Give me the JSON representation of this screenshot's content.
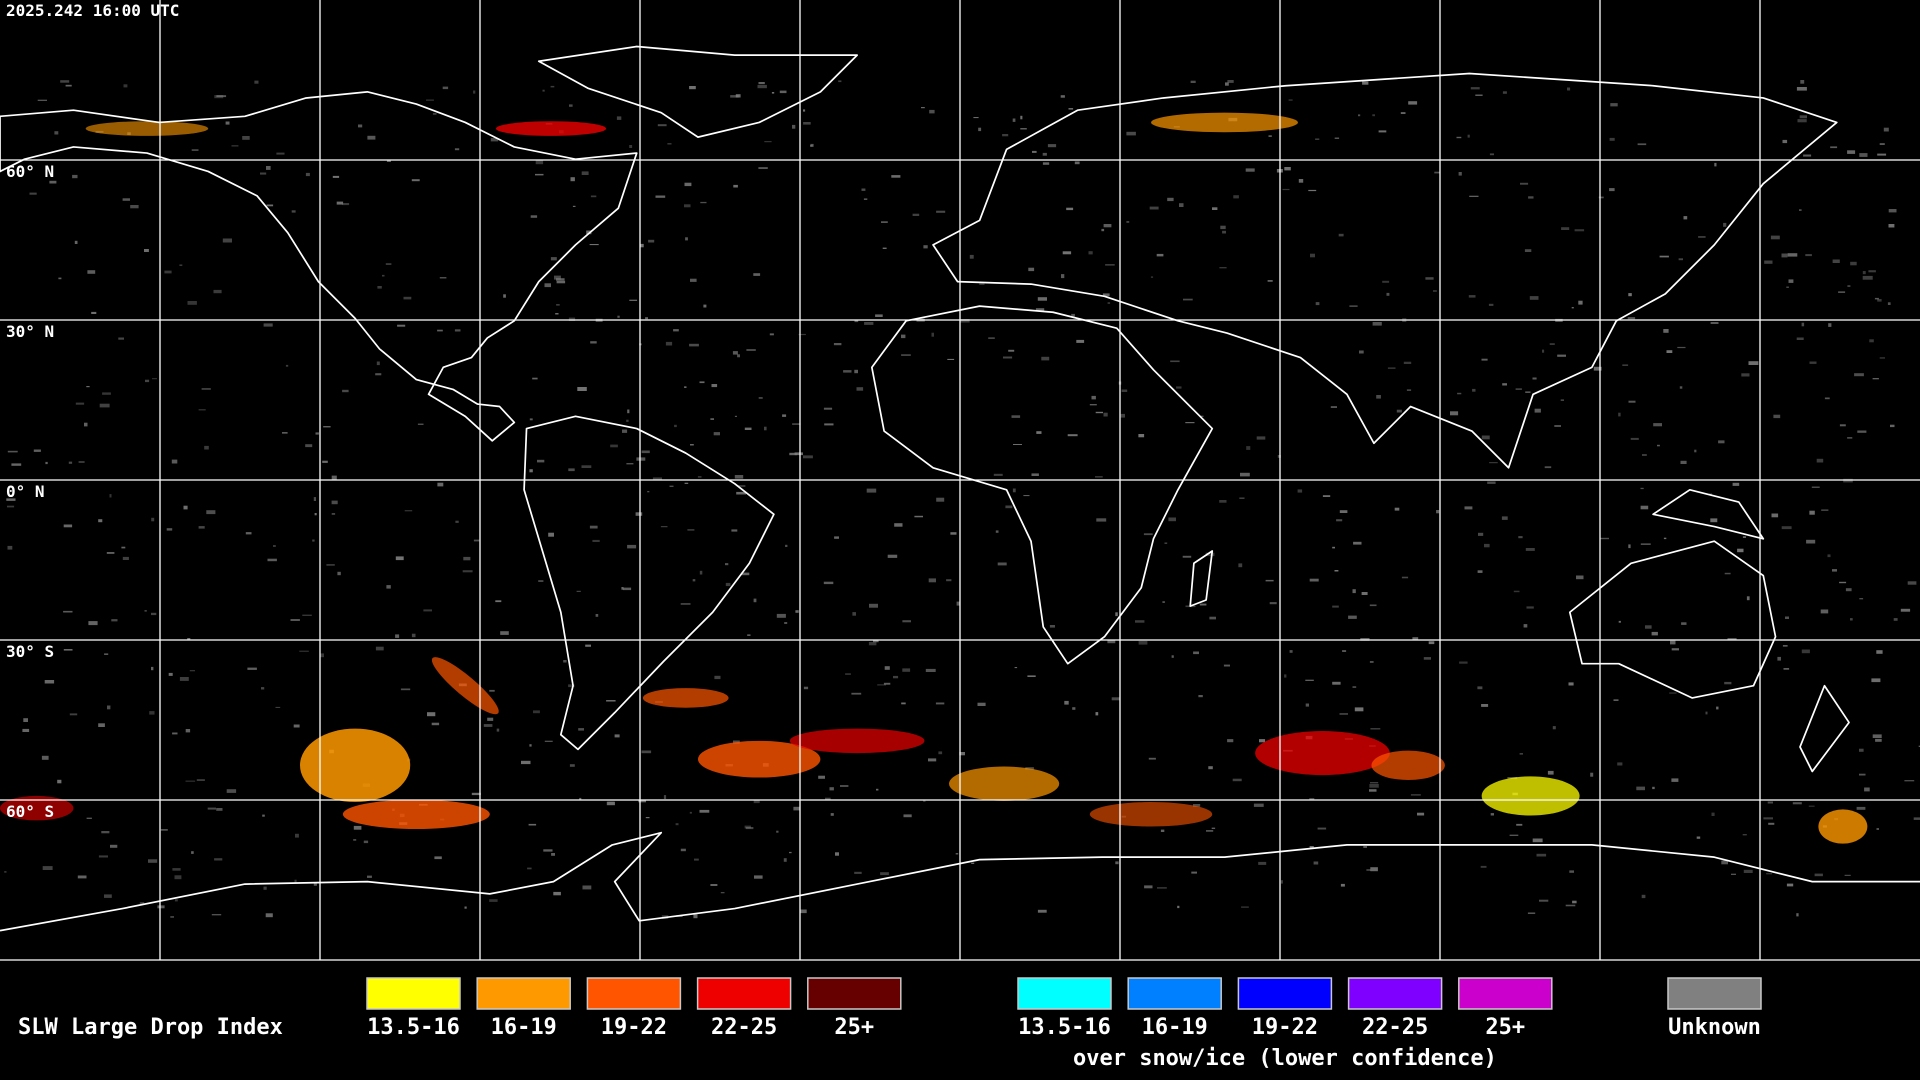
{
  "timestamp": "2025.242 16:00 UTC",
  "map": {
    "latitude_labels": [
      "60° N",
      "30° N",
      "0° N",
      "30° S",
      "60° S"
    ]
  },
  "legend": {
    "title": "SLW Large Drop Index",
    "groups": [
      {
        "items": [
          {
            "label": "13.5-16",
            "color": "#ffff00"
          },
          {
            "label": "16-19",
            "color": "#ff9900"
          },
          {
            "label": "19-22",
            "color": "#ff5500"
          },
          {
            "label": "22-25",
            "color": "#ee0000"
          },
          {
            "label": "25+",
            "color": "#660000"
          }
        ]
      },
      {
        "items": [
          {
            "label": "13.5-16",
            "color": "#00ffff"
          },
          {
            "label": "16-19",
            "color": "#0080ff"
          },
          {
            "label": "19-22",
            "color": "#0000ff"
          },
          {
            "label": "22-25",
            "color": "#7f00ff"
          },
          {
            "label": "25+",
            "color": "#cc00cc"
          }
        ],
        "subtitle": "over snow/ice (lower confidence)"
      },
      {
        "items": [
          {
            "label": "Unknown",
            "color": "#808080"
          }
        ]
      }
    ]
  }
}
